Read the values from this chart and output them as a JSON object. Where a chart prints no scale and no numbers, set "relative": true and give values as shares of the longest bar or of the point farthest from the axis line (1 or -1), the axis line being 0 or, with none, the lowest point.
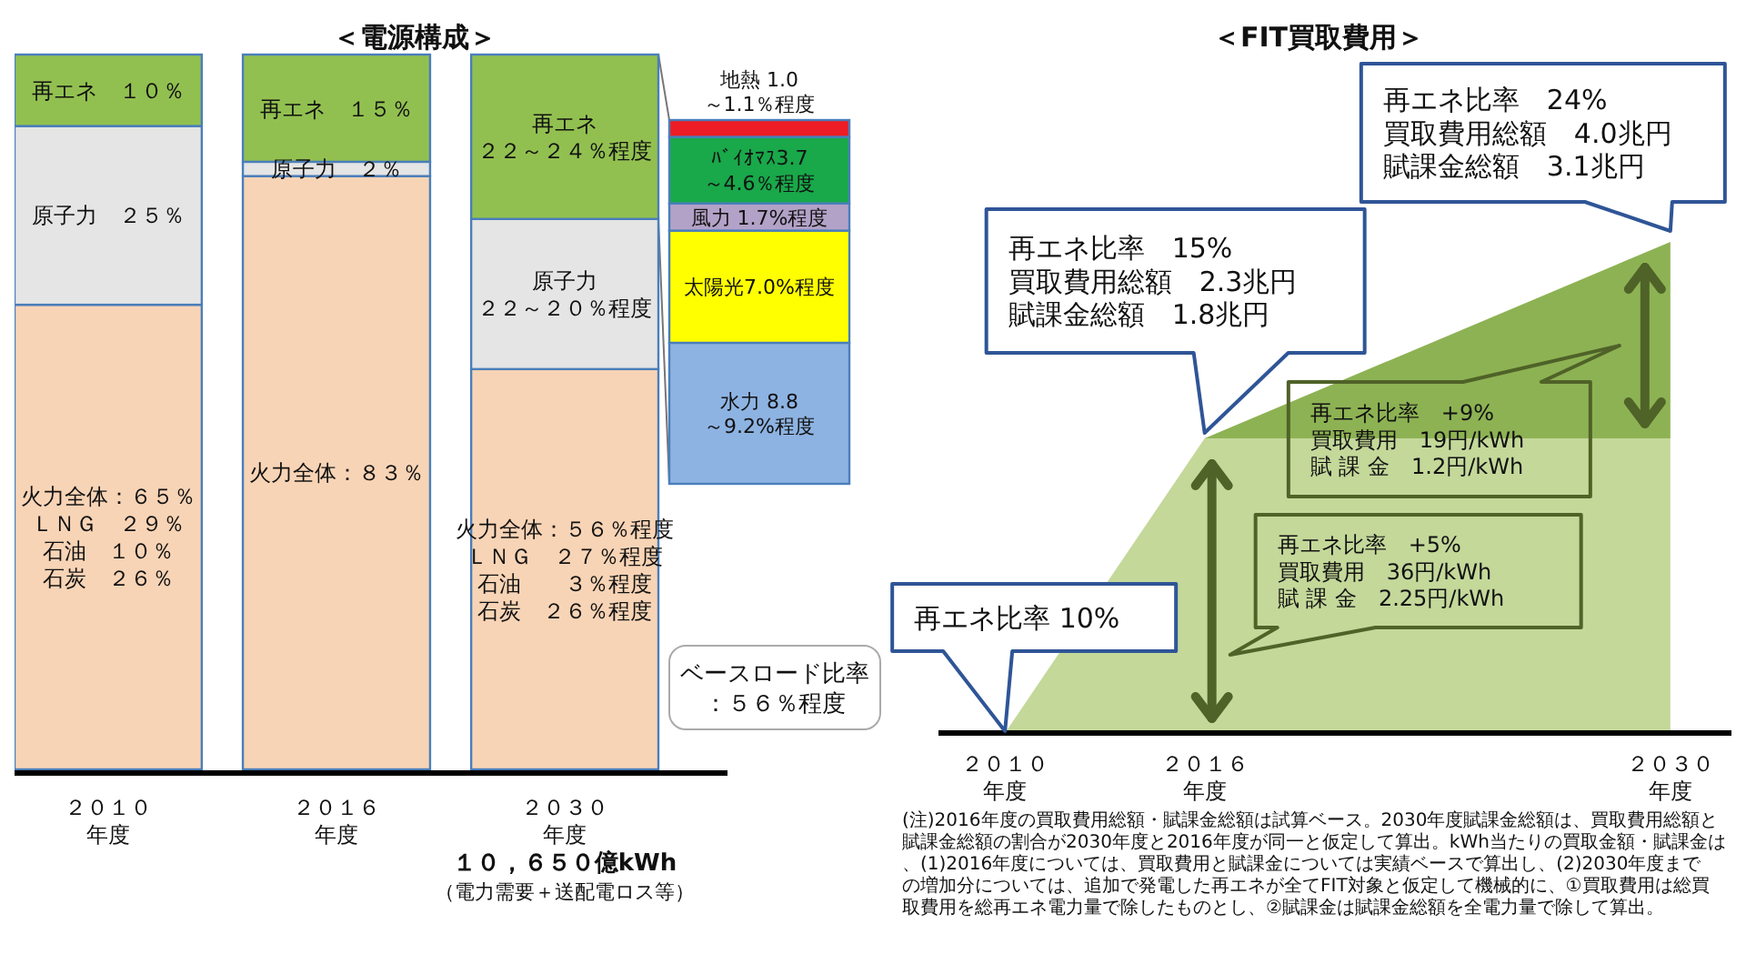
{
  "chart_data": [
    {
      "type": "bar",
      "title": "＜電源構成＞",
      "categories": [
        "２０１０年度",
        "２０１６年度",
        "２０３０年度"
      ],
      "stacked": true,
      "series": [
        {
          "color": "#f8d4b6",
          "values": [
            65,
            83,
            56
          ],
          "value_labels": [
            "火力全体：６５％ＬＮＧ　２９％石油　１０％石炭　２６％",
            "火力全体：８３％",
            "火力全体：５６％程度ＬＮＧ　２７％程度石油　　３％程度石炭　２６％程度"
          ]
        },
        {
          "color": "#e5e5e5",
          "values": [
            25,
            2,
            21
          ],
          "value_labels": [
            "原子力　２５％",
            "原子力　２％",
            "原子力２２～２０％程度"
          ]
        },
        {
          "color": "#92c050",
          "values": [
            10,
            15,
            23
          ],
          "value_labels": [
            "再エネ　１０％",
            "再エネ　１５％",
            "再エネ２２～２４％程度"
          ]
        }
      ],
      "annotations": [
        "ベースロード比率：５６％程度",
        "１０，６５０億kWh",
        "（電力需要＋送配電ロス等）"
      ]
    },
    {
      "type": "bar",
      "categories": [
        null
      ],
      "stacked": true,
      "series": [
        {
          "color": "#8db3e2",
          "values": [
            8.8
          ],
          "value_labels": [
            "水力 8.8～9.2%程度"
          ]
        },
        {
          "color": "#ffff00",
          "values": [
            7.0
          ],
          "value_labels": [
            "太陽光7.0%程度"
          ]
        },
        {
          "color": "#b3a2c7",
          "values": [
            1.7
          ],
          "value_labels": [
            "風力 1.7%程度"
          ]
        },
        {
          "color": "#19a84a",
          "values": [
            4.15
          ],
          "value_labels": [
            "ﾊﾞｲｵﾏｽ3.7～4.6％程度"
          ]
        },
        {
          "color": "#ee1c25",
          "values": [
            1.05
          ],
          "value_labels": [
            "地熱 1.0～1.1％程度"
          ]
        }
      ]
    },
    {
      "type": "area",
      "title": "＜FIT買取費用＞",
      "relative": true,
      "stacked": true,
      "x": [
        2010,
        2016,
        2030
      ],
      "xlim": [
        2008,
        2032
      ],
      "xticks": [
        {
          "value": 2010,
          "label": "２０１０年度"
        },
        {
          "value": 2016,
          "label": "２０１６年度"
        },
        {
          "value": 2030,
          "label": "２０３０年度"
        }
      ],
      "series": [
        {
          "color": "#c4d89a",
          "values": [
            0,
            0.6,
            0.6
          ]
        },
        {
          "color": "#8db253",
          "values": [
            0,
            0,
            0.4
          ]
        }
      ],
      "annotations": [
        "再エネ比率 10%",
        "再エネ比率　15%",
        "買取費用総額　2.3兆円",
        "賦課金総額　1.8兆円",
        "再エネ比率　24%",
        "買取費用総額　4.0兆円",
        "賦課金総額　3.1兆円",
        "再エネ比率　+5%",
        "買取費用　36円/kWh",
        "賦 課 金　2.25円/kWh",
        "再エネ比率　+9%",
        "買取費用　19円/kWh",
        "賦 課 金　1.2円/kWh",
        "(注)2016年度の買取費用総額・賦課金総額は試算ベース。2030年度賦課金総額は、買取費用総額と賦課金総額の割合が2030年度と2016年度が同一と仮定して算出。kWh当たりの買取金額・賦課金は、(1)2016年度については、買取費用と賦課金については実績ベースで算出し、(2)2030年度までの増加分については、追加で発電した再エネが全てFIT対象と仮定して機械的に、①買取費用は総買取費用を総再エネ電力量で除したものとし、②賦課金は賦課金総額を全電力量で除して算出。"
      ]
    }
  ]
}
